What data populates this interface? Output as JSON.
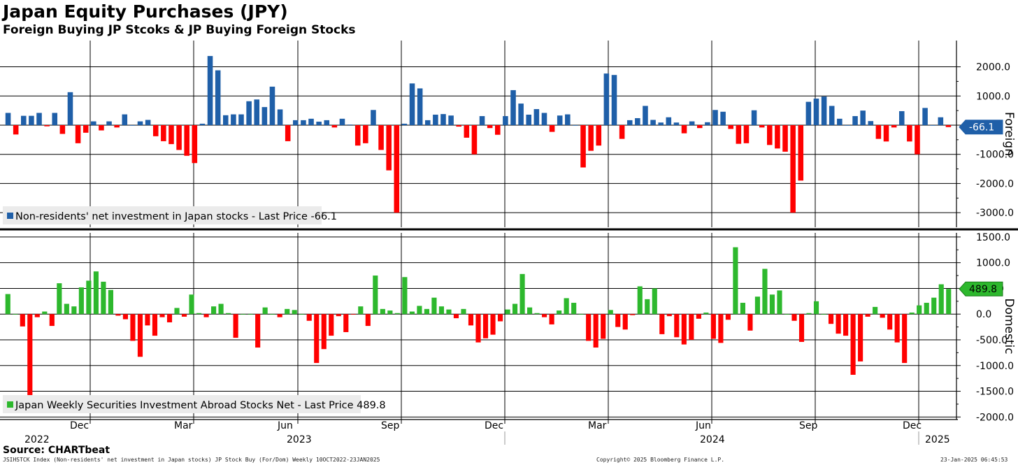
{
  "title": "Japan Equity Purchases (JPY)",
  "subtitle": "Foreign Buying JP Stcoks & JP Buying Foreign Stocks",
  "footer": {
    "source": "Source: CHARTbeat",
    "description": "JSIHSTCK Index (Non-residents' net investment in Japan stocks) JP Stock Buy (For/Dom)  Weekly 10OCT2022-23JAN2025",
    "copyright": "Copyright© 2025 Bloomberg Finance L.P.",
    "timestamp": "23-Jan-2025 06:45:53"
  },
  "colors": {
    "foreign_positive": "#1f5fa8",
    "negative": "#ff0000",
    "domestic_positive": "#2db82d"
  },
  "chart_data": [
    {
      "type": "bar",
      "name": "foreign",
      "axis_title": "Foreign",
      "legend": "Non-residents' net investment in Japan stocks - Last Price -66.1",
      "last_value_label": "-66.1",
      "last_value": -66.1,
      "ylim": [
        -3500,
        2900
      ],
      "yticks": [
        2000,
        1000,
        0,
        -1000,
        -2000,
        -3000
      ],
      "ytick_labels": [
        "2000.0",
        "1000.0",
        "0.0",
        "-1000.0",
        "-2000.0",
        "-3000.0"
      ],
      "values": [
        420,
        -320,
        320,
        320,
        420,
        -40,
        420,
        -300,
        1130,
        -620,
        -260,
        130,
        -180,
        130,
        -80,
        370,
        0,
        130,
        180,
        -380,
        -550,
        -650,
        -850,
        -1050,
        -1300,
        50,
        2370,
        1880,
        340,
        370,
        370,
        820,
        880,
        620,
        1320,
        540,
        -550,
        170,
        170,
        220,
        120,
        170,
        -80,
        220,
        20,
        -700,
        -620,
        520,
        -850,
        -1550,
        -3000,
        50,
        1430,
        1260,
        170,
        360,
        380,
        330,
        -50,
        -430,
        -1000,
        310,
        -100,
        -330,
        310,
        1200,
        740,
        360,
        550,
        420,
        -230,
        330,
        370,
        0,
        -1450,
        -880,
        -700,
        1770,
        1720,
        -470,
        170,
        240,
        660,
        180,
        90,
        270,
        90,
        -280,
        130,
        -100,
        100,
        520,
        460,
        -130,
        -640,
        -620,
        510,
        -80,
        -680,
        -800,
        -910,
        -3000,
        -1900,
        800,
        910,
        980,
        660,
        220,
        0,
        310,
        500,
        140,
        -470,
        -560,
        -80,
        480,
        -560,
        -1000,
        590,
        0,
        270,
        -66.1
      ],
      "x_month_labels": [
        "Dec",
        "Mar",
        "Jun",
        "Sep",
        "Dec",
        "Mar",
        "Jun",
        "Sep",
        "Dec"
      ],
      "x_year_labels": [
        "2022",
        "2023",
        "2024",
        "2025"
      ]
    },
    {
      "type": "bar",
      "name": "domestic",
      "axis_title": "Domestic",
      "legend": "Japan Weekly Securities Investment Abroad Stocks Net - Last Price 489.8",
      "last_value_label": "489.8",
      "last_value": 489.8,
      "ylim": [
        -2050,
        1580
      ],
      "yticks": [
        1500,
        1000,
        500,
        0,
        -500,
        -1000,
        -1500,
        -2000
      ],
      "ytick_labels": [
        "1500.0",
        "1000.0",
        "500.0",
        "0.0",
        "-500.0",
        "-1000.0",
        "-1500.0",
        "-2000.0"
      ],
      "values": [
        390,
        0,
        -240,
        -1600,
        -60,
        50,
        -230,
        600,
        200,
        150,
        520,
        650,
        830,
        630,
        470,
        -30,
        -100,
        -520,
        -830,
        -220,
        -420,
        -60,
        -160,
        120,
        -50,
        380,
        20,
        -60,
        150,
        200,
        20,
        -460,
        0,
        0,
        -650,
        130,
        0,
        -60,
        100,
        80,
        0,
        -130,
        -950,
        -680,
        -420,
        -40,
        -350,
        -10,
        150,
        -230,
        750,
        100,
        70,
        20,
        720,
        50,
        160,
        100,
        320,
        150,
        90,
        -80,
        100,
        -220,
        -550,
        -470,
        -400,
        -140,
        90,
        200,
        780,
        130,
        20,
        -60,
        -200,
        70,
        310,
        220,
        0,
        -520,
        -650,
        -480,
        80,
        -250,
        -300,
        -20,
        540,
        290,
        500,
        -390,
        -40,
        -450,
        -590,
        -500,
        -90,
        30,
        -480,
        -560,
        -110,
        1300,
        220,
        -320,
        340,
        880,
        380,
        460,
        0,
        -130,
        -540,
        20,
        250,
        0,
        -190,
        -380,
        -420,
        -1180,
        -920,
        -50,
        140,
        -70,
        -300,
        -550,
        -950,
        30,
        170,
        220,
        320,
        580,
        489.8
      ],
      "x_month_labels": [
        "Dec",
        "Mar",
        "Jun",
        "Sep",
        "Dec",
        "Mar",
        "Jun",
        "Sep",
        "Dec"
      ],
      "x_year_labels": [
        "2022",
        "2023",
        "2024",
        "2025"
      ]
    }
  ]
}
